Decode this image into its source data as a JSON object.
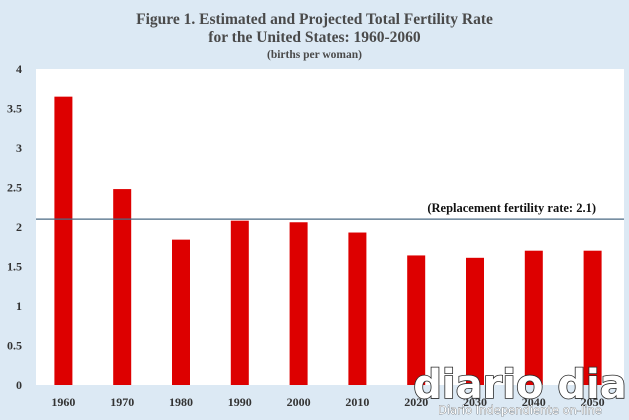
{
  "colors": {
    "background": "#dce9f4",
    "plot_area": "#ffffff",
    "bar": "#dd0000",
    "reference_line": "#4a6a84"
  },
  "chart_data": {
    "type": "bar",
    "title": "Figure 1. Estimated and Projected Total Fertility Rate",
    "title_line2": "for the United States: 1960-2060",
    "subtitle": "(births per woman)",
    "categories": [
      "1960",
      "1970",
      "1980",
      "1990",
      "2000",
      "2010",
      "2020",
      "2030",
      "2040",
      "2050"
    ],
    "values": [
      3.65,
      2.48,
      1.84,
      2.08,
      2.06,
      1.93,
      1.64,
      1.61,
      1.7,
      1.7
    ],
    "ylim": [
      0,
      4
    ],
    "yticks": [
      "0",
      "0.5",
      "1",
      "1.5",
      "2",
      "2.5",
      "3",
      "3.5",
      "4"
    ],
    "xlabel": "",
    "ylabel": "",
    "reference_line": {
      "value": 2.1,
      "label": "(Replacement fertility rate: 2.1)"
    }
  },
  "watermark": {
    "brand": "diario dia",
    "tagline": "Diario Independiente on-line"
  }
}
